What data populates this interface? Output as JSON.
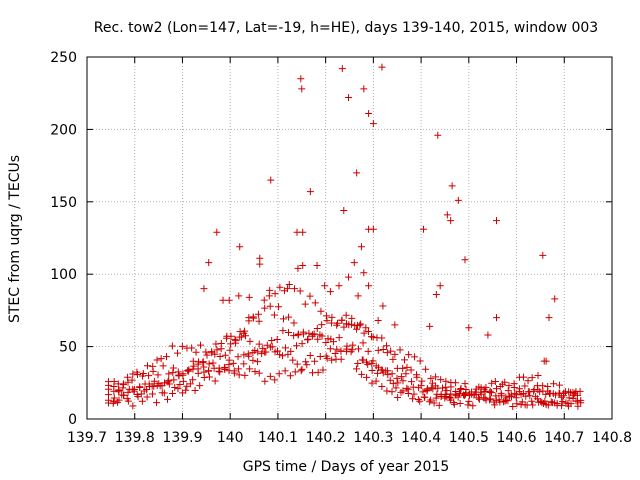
{
  "chart_data": {
    "type": "scatter",
    "title": "Rec. tow2 (Lon=147, Lat=-19, h=HE), days 139-140, 2015, window 003",
    "xlabel": "GPS time / Days of year 2015",
    "ylabel": "STEC from uqrg / TECUs",
    "xlim": [
      139.7,
      140.8
    ],
    "ylim": [
      0,
      250
    ],
    "x_ticks": [
      139.7,
      139.8,
      139.9,
      140.0,
      140.1,
      140.2,
      140.3,
      140.4,
      140.5,
      140.6,
      140.7,
      140.8
    ],
    "x_tick_labels": [
      "139.7",
      "139.8",
      "139.9",
      "140",
      "140.1",
      "140.2",
      "140.3",
      "140.4",
      "140.5",
      "140.6",
      "140.7",
      "140.8"
    ],
    "y_ticks": [
      0,
      50,
      100,
      150,
      200,
      250
    ],
    "y_tick_labels": [
      "0",
      "50",
      "100",
      "150",
      "200",
      "250"
    ],
    "grid": true,
    "marker": "plus",
    "color": "#cc0000",
    "outliers": [
      [
        140.085,
        165
      ],
      [
        140.148,
        235
      ],
      [
        140.15,
        228
      ],
      [
        140.168,
        157
      ],
      [
        140.14,
        129
      ],
      [
        140.152,
        129
      ],
      [
        140.235,
        242
      ],
      [
        140.248,
        222
      ],
      [
        140.265,
        170
      ],
      [
        140.28,
        228
      ],
      [
        140.29,
        211
      ],
      [
        140.3,
        204
      ],
      [
        140.318,
        243
      ],
      [
        140.238,
        144
      ],
      [
        140.29,
        131
      ],
      [
        140.3,
        131
      ],
      [
        140.275,
        119
      ],
      [
        140.26,
        108
      ],
      [
        140.182,
        106
      ],
      [
        140.152,
        106
      ],
      [
        140.142,
        104
      ],
      [
        140.062,
        111
      ],
      [
        140.062,
        107
      ],
      [
        140.02,
        119
      ],
      [
        139.955,
        108
      ],
      [
        139.972,
        129
      ],
      [
        140.435,
        196
      ],
      [
        140.455,
        141
      ],
      [
        140.462,
        137
      ],
      [
        140.465,
        161
      ],
      [
        140.478,
        151
      ],
      [
        140.492,
        110
      ],
      [
        140.405,
        131
      ],
      [
        140.558,
        137
      ],
      [
        140.655,
        113
      ],
      [
        140.68,
        83
      ],
      [
        140.668,
        70
      ],
      [
        140.558,
        70
      ],
      [
        140.44,
        92
      ],
      [
        140.432,
        86
      ],
      [
        140.418,
        64
      ],
      [
        140.5,
        63
      ],
      [
        140.54,
        58
      ],
      [
        140.658,
        40
      ],
      [
        140.662,
        40
      ],
      [
        140.645,
        30
      ],
      [
        140.018,
        85
      ],
      [
        140.04,
        84
      ],
      [
        140.082,
        85
      ],
      [
        139.985,
        82
      ],
      [
        139.998,
        82
      ],
      [
        140.21,
        88
      ],
      [
        140.228,
        92
      ],
      [
        140.248,
        98
      ],
      [
        140.268,
        85
      ],
      [
        140.28,
        101
      ],
      [
        140.29,
        92
      ],
      [
        140.31,
        68
      ],
      [
        140.32,
        78
      ],
      [
        140.345,
        65
      ],
      [
        140.198,
        92
      ],
      [
        140.12,
        90
      ],
      [
        139.945,
        90
      ]
    ]
  }
}
